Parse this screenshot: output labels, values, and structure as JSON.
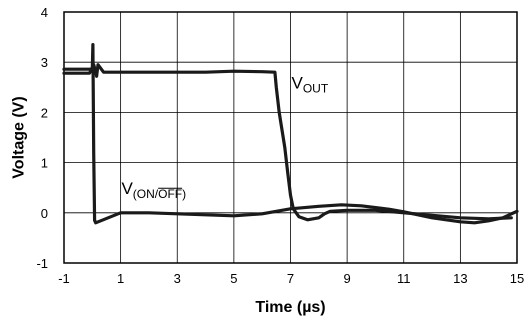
{
  "chart_data": {
    "type": "line",
    "xlabel": "Time (µs)",
    "ylabel": "Voltage (V)",
    "xlim": [
      -1,
      15
    ],
    "ylim": [
      -1,
      4
    ],
    "x_ticks": [
      -1,
      1,
      3,
      5,
      7,
      9,
      11,
      13,
      15
    ],
    "y_ticks": [
      -1,
      0,
      1,
      2,
      3,
      4
    ],
    "grid": true,
    "series": [
      {
        "name": "VOUT",
        "label_main": "V",
        "label_sub": "OUT",
        "color": "#1a1a1a",
        "x": [
          -1.0,
          -0.1,
          0.05,
          0.1,
          0.15,
          0.2,
          0.4,
          1.0,
          2.0,
          3.0,
          4.0,
          5.0,
          6.0,
          6.45,
          6.5,
          6.6,
          6.8,
          6.9,
          7.0,
          7.1,
          7.3,
          7.6,
          8.0,
          8.2,
          8.4,
          9.0,
          10.0,
          11.0,
          12.0,
          13.0,
          14.0,
          14.8
        ],
        "y": [
          2.78,
          2.78,
          2.95,
          2.85,
          2.72,
          2.95,
          2.8,
          2.8,
          2.8,
          2.8,
          2.8,
          2.82,
          2.81,
          2.8,
          2.5,
          2.0,
          1.3,
          0.8,
          0.35,
          0.08,
          -0.08,
          -0.14,
          -0.1,
          -0.02,
          0.03,
          0.05,
          0.05,
          0.0,
          -0.05,
          -0.1,
          -0.12,
          -0.1
        ]
      },
      {
        "name": "V(ON/OFF)",
        "label_main": "V",
        "label_sub": "(ON/OFF)",
        "color": "#1a1a1a",
        "x": [
          -1.0,
          -0.2,
          -0.05,
          0.0,
          0.02,
          0.05,
          0.08,
          0.12,
          1.0,
          2.0,
          3.0,
          4.0,
          5.0,
          6.0,
          7.0,
          8.0,
          8.8,
          9.5,
          10.5,
          11.0,
          12.0,
          13.0,
          13.5,
          14.0,
          14.5,
          15.0
        ],
        "y": [
          2.86,
          2.86,
          2.86,
          2.86,
          3.35,
          1.2,
          -0.15,
          -0.2,
          0.0,
          0.0,
          -0.02,
          -0.04,
          -0.06,
          -0.02,
          0.08,
          0.13,
          0.16,
          0.14,
          0.07,
          0.02,
          -0.1,
          -0.18,
          -0.2,
          -0.16,
          -0.1,
          0.03
        ]
      }
    ]
  }
}
